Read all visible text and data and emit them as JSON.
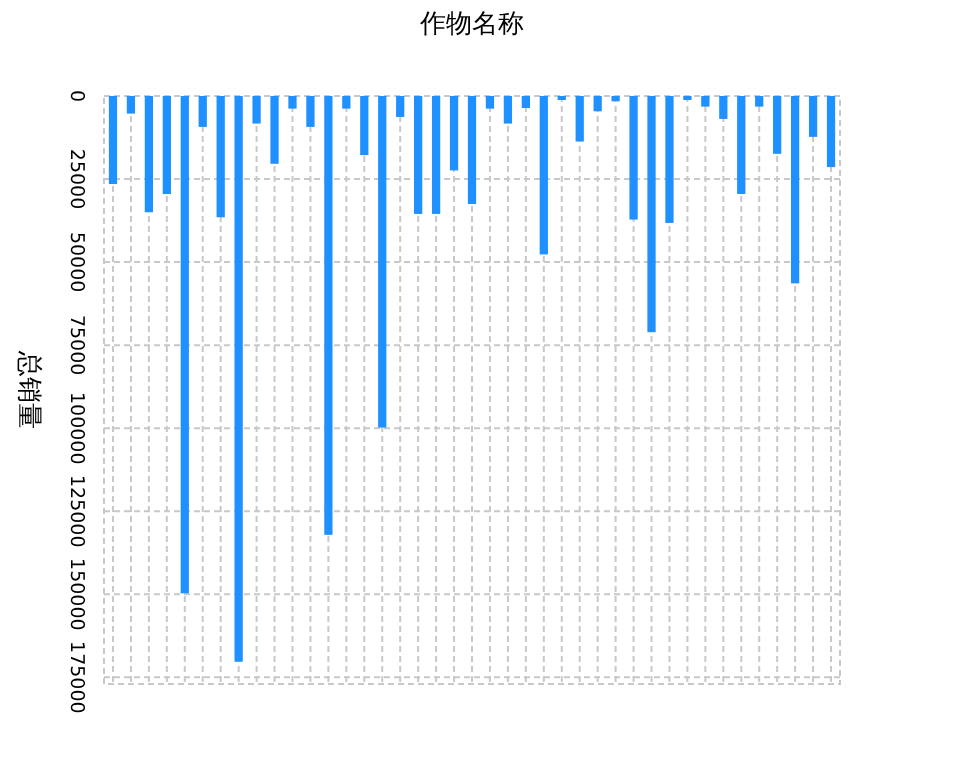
{
  "chart_data": {
    "type": "bar",
    "xlabel": "作物名称",
    "ylabel": "总销量",
    "categories": [
      null,
      null,
      null,
      null,
      null,
      null,
      null,
      null,
      null,
      null,
      null,
      null,
      null,
      null,
      null,
      null,
      null,
      null,
      null,
      null,
      null,
      null,
      null,
      null,
      null,
      null,
      null,
      null,
      null,
      null,
      null,
      null,
      null,
      null,
      null,
      null,
      null,
      null,
      null,
      null,
      null
    ],
    "series": [
      {
        "color": "#1e90ff",
        "values": [
          26500,
          5300,
          35000,
          29500,
          149700,
          9300,
          36500,
          170300,
          8300,
          20400,
          3800,
          9300,
          132100,
          3800,
          17800,
          99800,
          6300,
          35500,
          35500,
          22400,
          32500,
          3800,
          8300,
          3600,
          47700,
          1200,
          13700,
          4600,
          1600,
          37200,
          71100,
          38200,
          1200,
          3200,
          6900,
          29500,
          3200,
          17400,
          56400,
          12300,
          21400
        ]
      }
    ],
    "ylim": [
      177000,
      0
    ],
    "yticks": [
      0,
      25000,
      50000,
      75000,
      100000,
      125000,
      150000,
      175000
    ],
    "grid": true
  }
}
